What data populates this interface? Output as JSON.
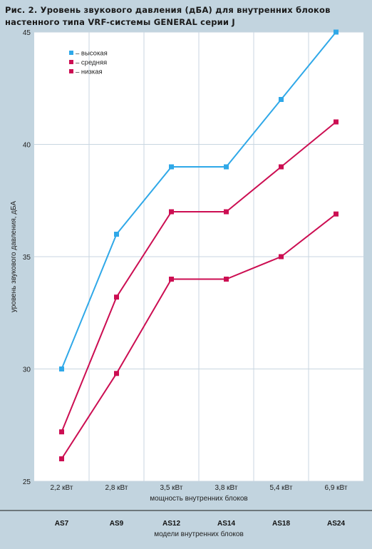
{
  "title_lines": [
    "Рис. 2. Уровень звукового давления (дБА) для внутренних блоков",
    "настенного типа VRF-системы GENERAL серии J"
  ],
  "chart_data": {
    "type": "line",
    "x": [
      "2,2 кВт",
      "2,8 кВт",
      "3,5 кВт",
      "3,8 кВт",
      "5,4 кВт",
      "6,9 кВт"
    ],
    "models": [
      "AS7",
      "AS9",
      "AS12",
      "AS14",
      "AS18",
      "AS24"
    ],
    "xlabel": "мощность внутренних блоков",
    "xlabel2": "модели внутренних блоков",
    "ylabel": "уровень звукового давления, дБА",
    "ylim": [
      25,
      45
    ],
    "yticks": [
      25,
      30,
      35,
      40,
      45
    ],
    "grid": true,
    "legend_position": "top-left",
    "series": [
      {
        "name": "– высокая",
        "values": [
          30,
          36,
          39,
          39,
          42,
          45
        ],
        "color": "#2fa8e8"
      },
      {
        "name": "– средняя",
        "values": [
          27.2,
          33.2,
          37,
          37,
          39,
          41
        ],
        "color": "#cc0e52"
      },
      {
        "name": "– низкая",
        "values": [
          26,
          29.8,
          34,
          34,
          35,
          36.9
        ],
        "color": "#cc0e52"
      }
    ]
  }
}
